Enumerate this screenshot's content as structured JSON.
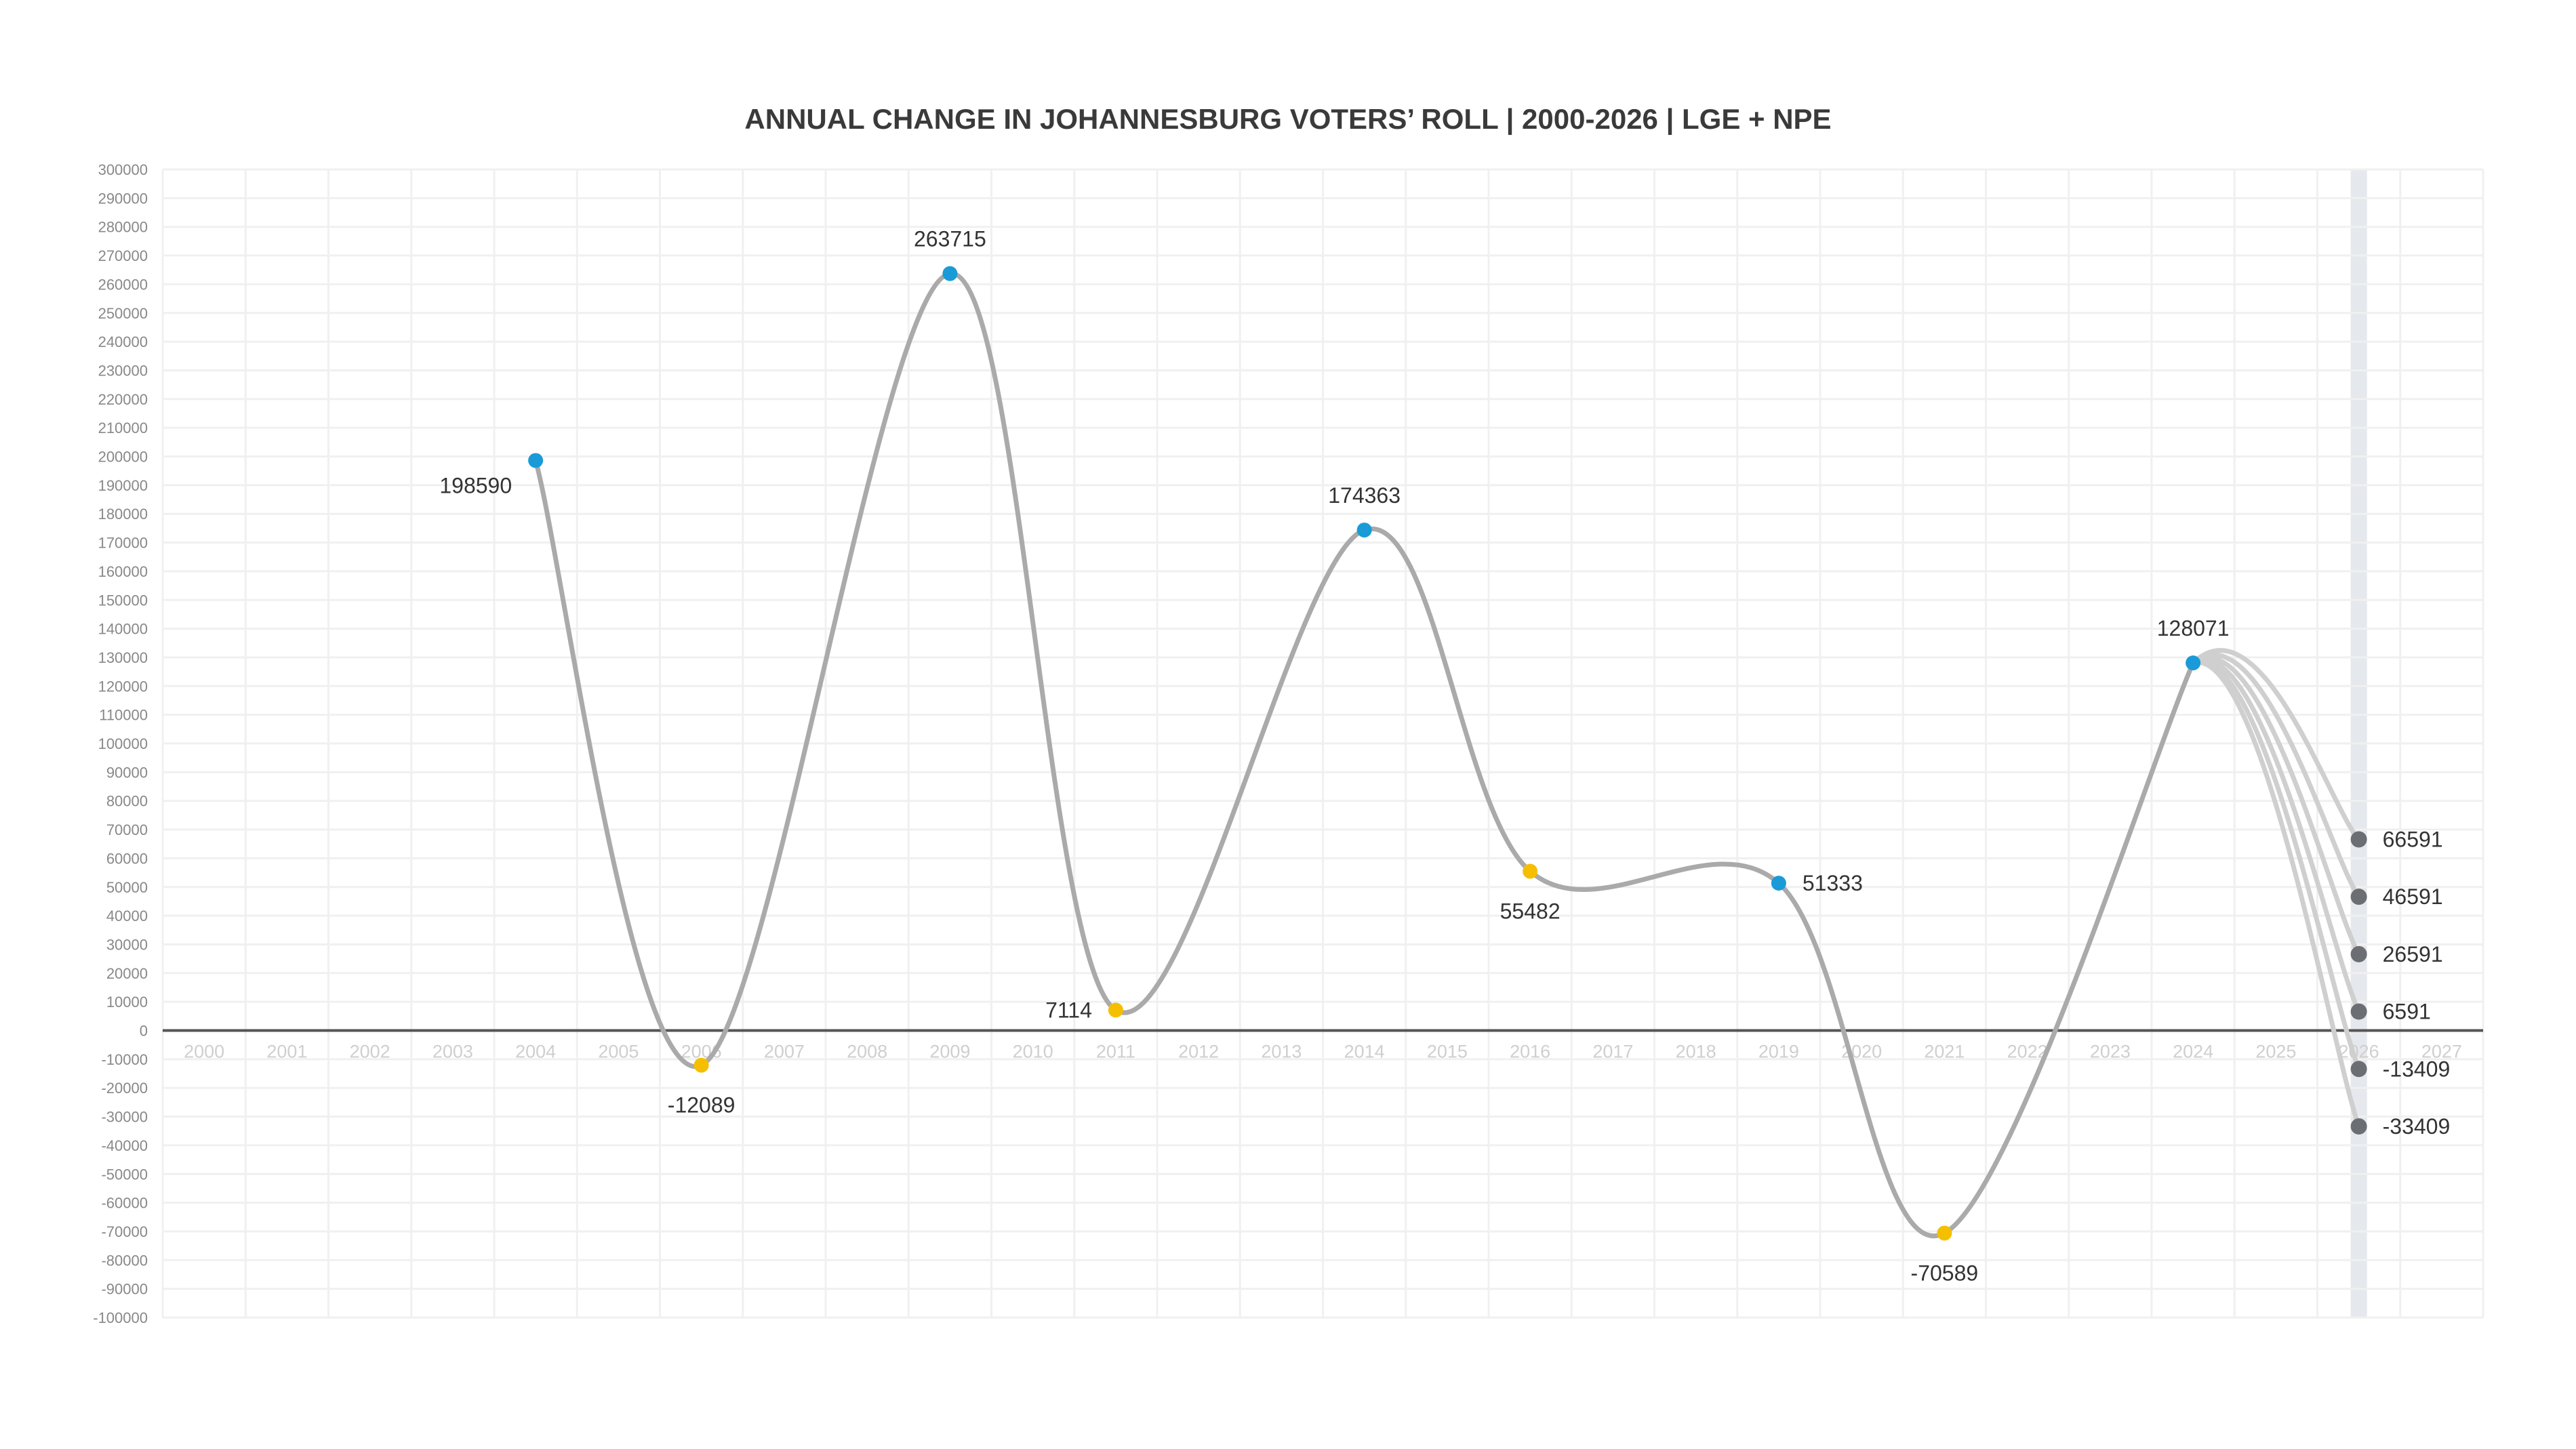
{
  "chart_data": {
    "type": "line",
    "title": "ANNUAL CHANGE IN JOHANNESBURG VOTERS’ ROLL | 2000-2026 | LGE + NPE",
    "xlabel": "",
    "ylabel": "",
    "xlim": [
      2000,
      2027
    ],
    "ylim": [
      -100000,
      300000
    ],
    "ystep": 10000,
    "x_ticks": [
      2000,
      2001,
      2002,
      2003,
      2004,
      2005,
      2006,
      2007,
      2008,
      2009,
      2010,
      2011,
      2012,
      2013,
      2014,
      2015,
      2016,
      2017,
      2018,
      2019,
      2020,
      2021,
      2022,
      2023,
      2024,
      2025,
      2026,
      2027
    ],
    "grid": true,
    "highlight_year": 2026,
    "colors": {
      "line": "#aaaaaa",
      "projection": "#cfcfcf",
      "increase": "#1a9bd7",
      "decrease": "#f5bf00",
      "scenario": "#6b6e73",
      "highlight": "#e5e8ec",
      "zero": "#555555"
    },
    "series": [
      {
        "name": "Annual change",
        "points": [
          {
            "x": 2004,
            "y": 198590,
            "kind": "increase",
            "label_pos": "below-left"
          },
          {
            "x": 2006,
            "y": -12089,
            "kind": "decrease",
            "label_pos": "below"
          },
          {
            "x": 2009,
            "y": 263715,
            "kind": "increase",
            "label_pos": "above"
          },
          {
            "x": 2011,
            "y": 7114,
            "kind": "decrease",
            "label_pos": "left"
          },
          {
            "x": 2014,
            "y": 174363,
            "kind": "increase",
            "label_pos": "above"
          },
          {
            "x": 2016,
            "y": 55482,
            "kind": "decrease",
            "label_pos": "below"
          },
          {
            "x": 2019,
            "y": 51333,
            "kind": "increase",
            "label_pos": "right"
          },
          {
            "x": 2021,
            "y": -70589,
            "kind": "decrease",
            "label_pos": "below"
          },
          {
            "x": 2024,
            "y": 128071,
            "kind": "increase",
            "label_pos": "above"
          }
        ]
      }
    ],
    "scenarios_2026": [
      66591,
      46591,
      26591,
      6591,
      -13409,
      -33409
    ]
  }
}
